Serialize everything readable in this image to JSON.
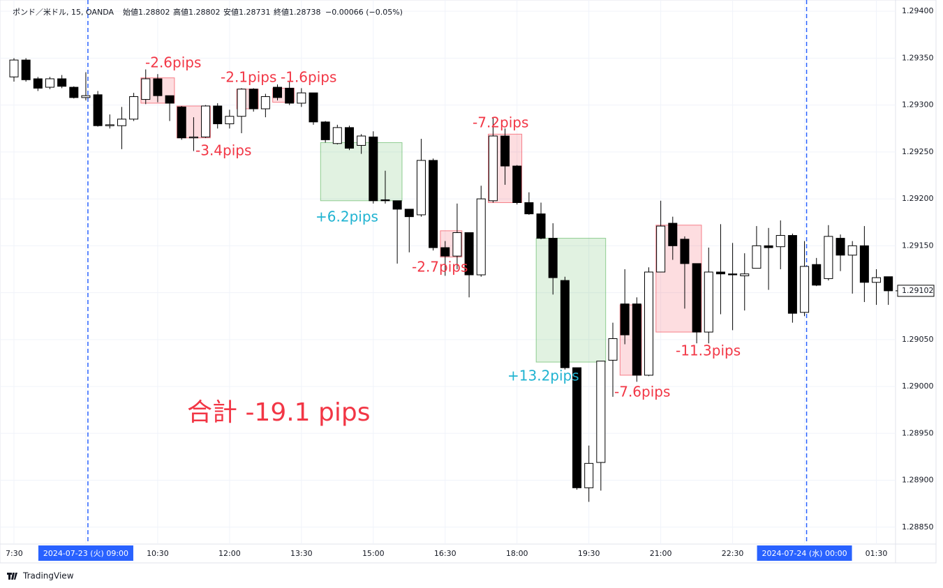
{
  "header": {
    "items": [
      "ポンド／米ドル, 15, OANDA",
      "始値1.28802",
      "高値1.28802",
      "安値1.28731",
      "終値1.28738",
      "−0.00066 (−0.05%)"
    ]
  },
  "chart_data": {
    "type": "candlestick",
    "categories": [
      "7:30",
      null,
      null,
      null,
      null,
      null,
      "2024-07-23 (火)  09:00",
      null,
      null,
      null,
      null,
      null,
      "10:30",
      null,
      null,
      null,
      null,
      null,
      "12:00",
      null,
      null,
      null,
      null,
      null,
      "13:30",
      null,
      null,
      null,
      null,
      null,
      "15:00",
      null,
      null,
      null,
      null,
      null,
      "16:30",
      null,
      null,
      null,
      null,
      null,
      "18:00",
      null,
      null,
      null,
      null,
      null,
      "19:30",
      null,
      null,
      null,
      null,
      null,
      "21:00",
      null,
      null,
      null,
      null,
      null,
      "22:30",
      null,
      null,
      null,
      null,
      null,
      "2024-07-24 (水)  00:00",
      null,
      null,
      null,
      null,
      null,
      "01:30",
      null
    ],
    "open": [
      1.2933,
      1.29348,
      1.29328,
      1.29319,
      1.29328,
      1.29319,
      1.29308,
      1.29311,
      1.29278,
      1.29278,
      1.29285,
      1.29306,
      1.29328,
      1.2931,
      1.29298,
      1.29265,
      1.29266,
      1.29299,
      1.2928,
      1.29288,
      1.29317,
      1.29296,
      1.29319,
      1.29318,
      1.29302,
      1.29313,
      1.29282,
      1.29259,
      1.29276,
      1.29257,
      1.29266,
      1.29199,
      1.29198,
      1.29189,
      1.29183,
      1.29241,
      1.29148,
      1.29139,
      1.29164,
      1.29119,
      1.29198,
      1.29267,
      1.29235,
      1.29196,
      1.29184,
      1.29158,
      1.29113,
      1.2902,
      1.28892,
      1.28919,
      1.29028,
      1.29088,
      1.29088,
      1.29012,
      1.29122,
      1.29174,
      1.29157,
      1.29131,
      1.29058,
      1.29122,
      1.2912,
      1.29118,
      1.29126,
      1.2915,
      1.29149,
      1.29161,
      1.29079,
      1.2913,
      1.29115,
      1.29158,
      1.2914,
      1.2915,
      1.29111,
      1.29117
    ],
    "high": [
      1.2935,
      1.2935,
      1.2933,
      1.2933,
      1.29332,
      1.2932,
      1.29335,
      1.29315,
      1.2929,
      1.29298,
      1.29313,
      1.29338,
      1.29333,
      1.2931,
      1.29299,
      1.29287,
      1.293,
      1.29302,
      1.29295,
      1.29318,
      1.29318,
      1.29312,
      1.29322,
      1.29325,
      1.29318,
      1.29313,
      1.29283,
      1.29279,
      1.29278,
      1.29269,
      1.29272,
      1.2923,
      1.29198,
      1.29189,
      1.29264,
      1.29243,
      1.29155,
      1.29195,
      1.29164,
      1.29214,
      1.29287,
      1.29275,
      1.29236,
      1.29207,
      1.29196,
      1.29174,
      1.29117,
      1.2902,
      1.28937,
      1.29027,
      1.29068,
      1.29125,
      1.29095,
      1.29127,
      1.29198,
      1.29181,
      1.2916,
      1.29131,
      1.29148,
      1.29173,
      1.29153,
      1.29142,
      1.29171,
      1.29169,
      1.29177,
      1.29163,
      1.29155,
      1.29137,
      1.29172,
      1.29162,
      1.29155,
      1.29171,
      1.29125,
      1.29117
    ],
    "low": [
      1.29325,
      1.29325,
      1.29315,
      1.29317,
      1.29318,
      1.29307,
      1.29305,
      1.29277,
      1.29275,
      1.29253,
      1.29283,
      1.29301,
      1.29303,
      1.29283,
      1.29263,
      1.29251,
      1.29265,
      1.29275,
      1.29275,
      1.2927,
      1.29293,
      1.29287,
      1.29305,
      1.293,
      1.29298,
      1.29279,
      1.2926,
      1.29258,
      1.29252,
      1.29248,
      1.29195,
      1.29195,
      1.29131,
      1.29143,
      1.29181,
      1.29145,
      1.29118,
      1.29125,
      1.29095,
      1.29117,
      1.29196,
      1.29215,
      1.29194,
      1.29183,
      1.29157,
      1.29098,
      1.29018,
      1.2889,
      1.28877,
      1.28889,
      1.28989,
      1.29045,
      1.29005,
      1.29011,
      1.29122,
      1.29135,
      1.29083,
      1.29046,
      1.29046,
      1.29077,
      1.2906,
      1.29081,
      1.29126,
      1.29103,
      1.29125,
      1.29068,
      1.29075,
      1.29107,
      1.29113,
      1.29123,
      1.29099,
      1.2909,
      1.29087,
      1.29087
    ],
    "close": [
      1.29348,
      1.29327,
      1.29318,
      1.29328,
      1.2932,
      1.29308,
      1.2931,
      1.29278,
      1.29279,
      1.29285,
      1.29309,
      1.29328,
      1.2931,
      1.29302,
      1.29265,
      1.29266,
      1.29299,
      1.2928,
      1.29288,
      1.29317,
      1.29296,
      1.29309,
      1.29308,
      1.29302,
      1.29313,
      1.29282,
      1.29263,
      1.29276,
      1.29254,
      1.29267,
      1.29198,
      1.29198,
      1.29189,
      1.29181,
      1.29241,
      1.29148,
      1.29139,
      1.29164,
      1.29119,
      1.292,
      1.29267,
      1.29235,
      1.29196,
      1.29184,
      1.29158,
      1.29116,
      1.2902,
      1.28892,
      1.28918,
      1.29027,
      1.29051,
      1.29055,
      1.29012,
      1.29122,
      1.29171,
      1.2915,
      1.29131,
      1.29058,
      1.29122,
      1.2912,
      1.29119,
      1.2912,
      1.2915,
      1.29148,
      1.29161,
      1.29078,
      1.29128,
      1.29108,
      1.2916,
      1.2914,
      1.2915,
      1.29111,
      1.29116,
      1.29102
    ],
    "up_color": "#ffffff",
    "down_color": "#000000",
    "ylim": [
      1.28832,
      1.29412
    ],
    "yticks": [
      {
        "value": 1.294,
        "label": "1.29400"
      },
      {
        "value": 1.2935,
        "label": "1.29350"
      },
      {
        "value": 1.293,
        "label": "1.29300"
      },
      {
        "value": 1.2925,
        "label": "1.29250"
      },
      {
        "value": 1.292,
        "label": "1.29200"
      },
      {
        "value": 1.2915,
        "label": "1.29150"
      },
      {
        "value": 1.291,
        "label": "1.29100"
      },
      {
        "value": 1.2905,
        "label": "1.29050"
      },
      {
        "value": 1.29,
        "label": "1.29000"
      },
      {
        "value": 1.2895,
        "label": "1.28950"
      },
      {
        "value": 1.289,
        "label": "1.28900"
      },
      {
        "value": 1.2885,
        "label": "1.28850"
      }
    ],
    "last_price": 1.29102,
    "grid": true,
    "trades": [
      {
        "start": 11,
        "end": 13,
        "top": 1.29329,
        "bottom": 1.29302,
        "color": "#f23645",
        "label": "-2.6pips",
        "label_color": "#f23645"
      },
      {
        "start": 14,
        "end": 16,
        "top": 1.29299,
        "bottom": 1.29265,
        "color": "#f23645",
        "label": "-3.4pips",
        "label_color": "#f23645"
      },
      {
        "start": 19,
        "end": 20,
        "top": 1.29317,
        "bottom": 1.29296,
        "color": "#f23645",
        "label": "-2.1pips",
        "label_color": "#f23645"
      },
      {
        "start": 22,
        "end": 23,
        "top": 1.29318,
        "bottom": 1.29303,
        "color": "#f23645",
        "label": "-1.6pips",
        "label_color": "#f23645"
      },
      {
        "start": 26,
        "end": 32,
        "top": 1.2926,
        "bottom": 1.29198,
        "color": "#4caf50",
        "label": "+6.2pips",
        "label_color": "#1fb3d1"
      },
      {
        "start": 36,
        "end": 37,
        "top": 1.29166,
        "bottom": 1.29138,
        "color": "#f23645",
        "label": "-2.7pips",
        "label_color": "#f23645"
      },
      {
        "start": 40,
        "end": 42,
        "top": 1.29269,
        "bottom": 1.29196,
        "color": "#f23645",
        "label": "-7.2pips",
        "label_color": "#f23645"
      },
      {
        "start": 44,
        "end": 49,
        "top": 1.29158,
        "bottom": 1.29026,
        "color": "#4caf50",
        "label": "+13.2pips",
        "label_color": "#1fb3d1"
      },
      {
        "start": 51,
        "end": 52,
        "top": 1.29087,
        "bottom": 1.29012,
        "color": "#f23645",
        "label": "-7.6pips",
        "label_color": "#f23645"
      },
      {
        "start": 54,
        "end": 57,
        "top": 1.29172,
        "bottom": 1.29058,
        "color": "#f23645",
        "label": "-11.3pips",
        "label_color": "#f23645"
      }
    ],
    "total": "合計 -19.1 pips"
  },
  "footer": {
    "brand": "TradingView"
  }
}
